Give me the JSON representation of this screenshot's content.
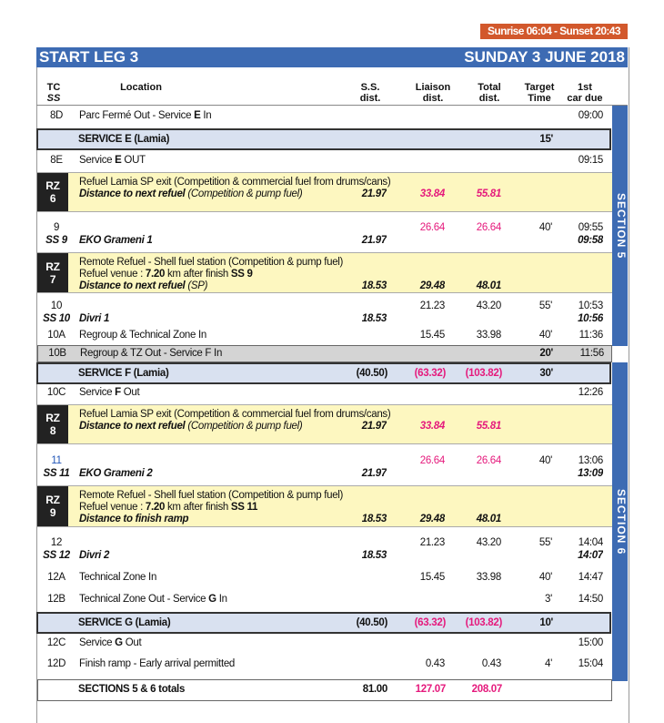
{
  "sun_banner": "Sunrise 06:04 - Sunset 20:43",
  "header": {
    "title": "START  LEG 3",
    "date": "SUNDAY 3 JUNE 2018"
  },
  "columns": {
    "tc": "TC",
    "ss": "SS",
    "location": "Location",
    "ss_dist": "S.S.\ndist.",
    "liaison": "Liaison\ndist.",
    "total": "Total\ndist.",
    "target": "Target\nTime",
    "due": "1st\ncar due"
  },
  "sections": [
    "SECTION  5",
    "SECTION  6"
  ],
  "colors": {
    "blue": "#3d6bb3",
    "pink": "#e5197c",
    "yellow": "#fdf7c0",
    "service": "#d9e1f0",
    "banner": "#d2582c"
  },
  "rows": [
    {
      "type": "tc",
      "tc": "8D",
      "loc": [
        [
          "Parc Fermé Out - Service ",
          0
        ],
        [
          "E",
          1
        ],
        [
          " In",
          0
        ]
      ],
      "due": "09:00"
    },
    {
      "type": "service",
      "loc": "SERVICE  E (Lamia)",
      "target": "15'"
    },
    {
      "type": "tc",
      "tc": "8E",
      "loc": [
        [
          "Service ",
          0
        ],
        [
          "E",
          1
        ],
        [
          " OUT",
          0
        ]
      ],
      "due": "09:15"
    },
    {
      "type": "rz",
      "rz": "RZ\n6",
      "line1": [
        [
          "Refuel Lamia SP exit (Competition & commercial fuel from drums/cans)",
          0
        ]
      ],
      "line2": [
        [
          "Distance to next refuel ",
          3
        ],
        [
          " (Competition & pump fuel)",
          2
        ]
      ],
      "ss": "21.97",
      "liaison": "33.84",
      "total": "55.81",
      "pink": true
    },
    {
      "type": "stage",
      "tc": "9",
      "ss_no": "SS 9",
      "loc": "EKO Grameni 1",
      "ss": "21.97",
      "liaison": "26.64",
      "total": "26.64",
      "pink": true,
      "target": "40'",
      "due": "09:55",
      "due2": "09:58"
    },
    {
      "type": "rz",
      "rz": "RZ\n7",
      "line1": [
        [
          "Remote Refuel - Shell fuel station (Competition & pump fuel)",
          0
        ]
      ],
      "line1b": [
        [
          "Refuel venue : ",
          0
        ],
        [
          "7.20",
          1
        ],
        [
          " km after finish ",
          0
        ],
        [
          "SS 9",
          1
        ]
      ],
      "line2": [
        [
          "Distance to next refuel",
          3
        ],
        [
          " (SP)",
          2
        ]
      ],
      "ss": "18.53",
      "liaison": "29.48",
      "total": "48.01",
      "pink": false
    },
    {
      "type": "stage",
      "tc": "10",
      "ss_no": "SS 10",
      "loc": "Divri 1",
      "ss": "18.53",
      "liaison": "21.23",
      "total": "43.20",
      "pink": false,
      "target": "55'",
      "due": "10:53",
      "due2": "10:56"
    },
    {
      "type": "tc",
      "tc": "10A",
      "loc": [
        [
          "Regroup & Technical Zone In",
          0
        ]
      ],
      "liaison": "15.45",
      "total": "33.98",
      "target": "40'",
      "due": "11:36"
    },
    {
      "type": "grey",
      "tc": "10B",
      "loc": [
        [
          "Regroup & TZ Out - Service  ",
          0
        ],
        [
          "F",
          0
        ],
        [
          " In",
          0
        ]
      ],
      "target": "20'",
      "due": "11:56"
    },
    {
      "type": "service",
      "loc": "SERVICE  F (Lamia)",
      "ss": "(40.50)",
      "liaison": "(63.32)",
      "total": "(103.82)",
      "target": "30'"
    },
    {
      "type": "tc",
      "tc": "10C",
      "loc": [
        [
          "Service  ",
          0
        ],
        [
          "F",
          1
        ],
        [
          " Out",
          0
        ]
      ],
      "due": "12:26"
    },
    {
      "type": "rz",
      "rz": "RZ\n8",
      "line1": [
        [
          "Refuel Lamia SP exit (Competition & commercial fuel from drums/cans)",
          0
        ]
      ],
      "line2": [
        [
          "Distance to next refuel ",
          3
        ],
        [
          " (Competition & pump fuel)",
          2
        ]
      ],
      "ss": "21.97",
      "liaison": "33.84",
      "total": "55.81",
      "pink": true
    },
    {
      "type": "stage",
      "tc": "11",
      "tcblue": true,
      "ss_no": "SS 11",
      "loc": "EKO Grameni 2",
      "ss": "21.97",
      "liaison": "26.64",
      "total": "26.64",
      "pink": true,
      "target": "40'",
      "due": "13:06",
      "due2": "13:09"
    },
    {
      "type": "rz",
      "rz": "RZ\n9",
      "line1": [
        [
          "Remote Refuel - Shell fuel station (Competition & pump fuel)",
          0
        ]
      ],
      "line1b": [
        [
          "Refuel venue : ",
          0
        ],
        [
          "7.20",
          1
        ],
        [
          " km after finish ",
          0
        ],
        [
          "SS 11",
          1
        ]
      ],
      "line2": [
        [
          "Distance to finish ramp",
          3
        ]
      ],
      "ss": "18.53",
      "liaison": "29.48",
      "total": "48.01",
      "pink": false
    },
    {
      "type": "stage",
      "tc": "12",
      "ss_no": "SS 12",
      "loc": "Divri 2",
      "ss": "18.53",
      "liaison": "21.23",
      "total": "43.20",
      "pink": false,
      "target": "55'",
      "due": "14:04",
      "due2": "14:07"
    },
    {
      "type": "tc",
      "tc": "12A",
      "loc": [
        [
          "Technical Zone In",
          0
        ]
      ],
      "liaison": "15.45",
      "total": "33.98",
      "target": "40'",
      "due": "14:47"
    },
    {
      "type": "tc",
      "tc": "12B",
      "loc": [
        [
          "Technical Zone Out - Service ",
          0
        ],
        [
          "G",
          1
        ],
        [
          " In",
          0
        ]
      ],
      "target": "3'",
      "due": "14:50"
    },
    {
      "type": "service",
      "loc": "SERVICE  G (Lamia)",
      "ss": "(40.50)",
      "liaison": "(63.32)",
      "total": "(103.82)",
      "target": "10'"
    },
    {
      "type": "tc",
      "tc": "12C",
      "loc": [
        [
          "Service ",
          0
        ],
        [
          "G",
          1
        ],
        [
          " Out",
          0
        ]
      ],
      "due": "15:00"
    },
    {
      "type": "tc",
      "tc": "12D",
      "loc": [
        [
          "Finish ramp - Early arrival permitted",
          0
        ]
      ],
      "liaison": "0.43",
      "total": "0.43",
      "target": "4'",
      "due": "15:04"
    },
    {
      "type": "totals",
      "loc": "SECTIONS 5 & 6 totals",
      "ss": "81.00",
      "liaison": "127.07",
      "total": "208.07"
    }
  ]
}
